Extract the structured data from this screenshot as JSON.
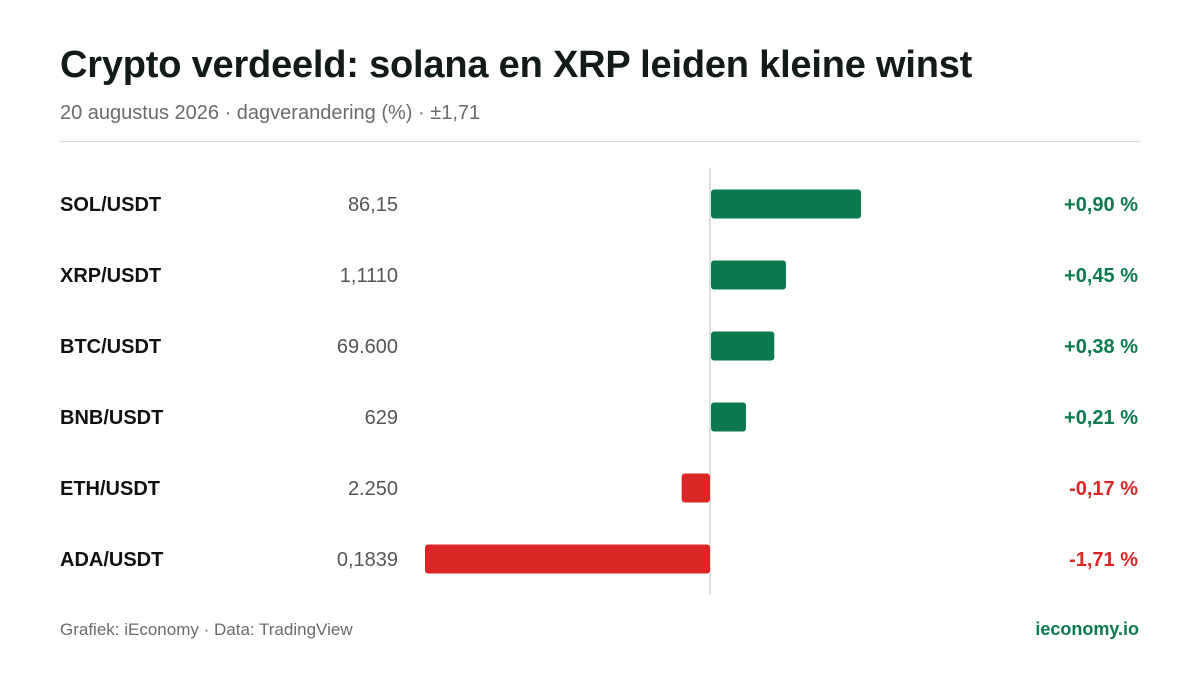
{
  "header": {
    "title": "Crypto verdeeld: solana en XRP leiden kleine winst",
    "subtitle": "20 augustus 2026 · dagverandering (%) · ±1,71"
  },
  "footer": {
    "credit": "Grafiek: iEconomy",
    "separator": " · ",
    "source": "Data: TradingView",
    "site": "ieconomy.io"
  },
  "colors": {
    "positive": "#0c7a4e",
    "negative": "#dc2626",
    "label": "#111111",
    "price": "#555555",
    "axis": "#d4d4d4"
  },
  "chart_data": {
    "type": "bar",
    "orientation": "horizontal",
    "categories": [
      "SOL/USDT",
      "XRP/USDT",
      "BTC/USDT",
      "BNB/USDT",
      "ETH/USDT",
      "ADA/USDT"
    ],
    "prices": [
      "86,15",
      "1,1110",
      "69.600",
      "629",
      "2.250",
      "0,1839"
    ],
    "values": [
      0.9,
      0.45,
      0.38,
      0.21,
      -0.17,
      -1.71
    ],
    "value_labels": [
      "+0,90 %",
      "+0,45 %",
      "+0,38 %",
      "+0,21 %",
      "-0,17 %",
      "-1,71 %"
    ],
    "xlim": [
      -1.71,
      1.71
    ],
    "grid": false
  }
}
